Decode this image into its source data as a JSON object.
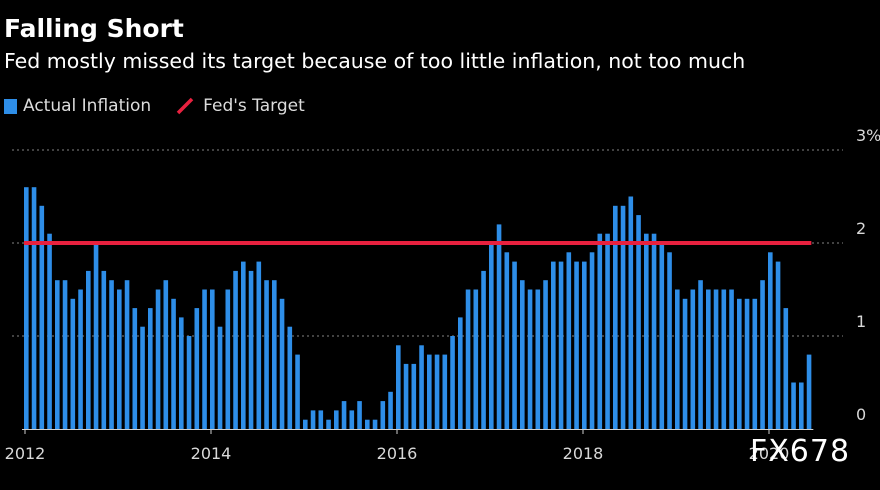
{
  "title": "Falling Short",
  "subtitle": "Fed mostly missed its target because of too little inflation, not too much",
  "watermark": "FX678",
  "legend": {
    "actual_label": "Actual Inflation",
    "target_label": "Fed's Target"
  },
  "colors": {
    "bar": "#2e8ee8",
    "target": "#e8213f",
    "grid": "#6a6a6a",
    "axis": "#cfcfcf",
    "tick_text": "#d8d8d8"
  },
  "chart_data": {
    "type": "bar",
    "x_start": "2012-01",
    "x_end": "2020-08",
    "xticks": [
      "2012",
      "2014",
      "2016",
      "2018",
      "2020"
    ],
    "yticks": [
      "0",
      "1",
      "2",
      "3%"
    ],
    "ylim": [
      0,
      3
    ],
    "grid": true,
    "target_value": 2.0,
    "series": [
      {
        "name": "Actual Inflation",
        "values": [
          2.6,
          2.6,
          2.4,
          2.1,
          1.6,
          1.6,
          1.4,
          1.5,
          1.7,
          2.0,
          1.7,
          1.6,
          1.5,
          1.6,
          1.3,
          1.1,
          1.3,
          1.5,
          1.6,
          1.4,
          1.2,
          1.0,
          1.3,
          1.5,
          1.5,
          1.1,
          1.5,
          1.7,
          1.8,
          1.7,
          1.8,
          1.6,
          1.6,
          1.4,
          1.1,
          0.8,
          0.1,
          0.2,
          0.2,
          0.1,
          0.2,
          0.3,
          0.2,
          0.3,
          0.1,
          0.1,
          0.3,
          0.4,
          0.9,
          0.7,
          0.7,
          0.9,
          0.8,
          0.8,
          0.8,
          1.0,
          1.2,
          1.5,
          1.5,
          1.7,
          2.0,
          2.2,
          1.9,
          1.8,
          1.6,
          1.5,
          1.5,
          1.6,
          1.8,
          1.8,
          1.9,
          1.8,
          1.8,
          1.9,
          2.1,
          2.1,
          2.4,
          2.4,
          2.5,
          2.3,
          2.1,
          2.1,
          2.0,
          1.9,
          1.5,
          1.4,
          1.5,
          1.6,
          1.5,
          1.5,
          1.5,
          1.5,
          1.4,
          1.4,
          1.4,
          1.6,
          1.9,
          1.8,
          1.3,
          0.5,
          0.5,
          0.8
        ]
      }
    ]
  }
}
